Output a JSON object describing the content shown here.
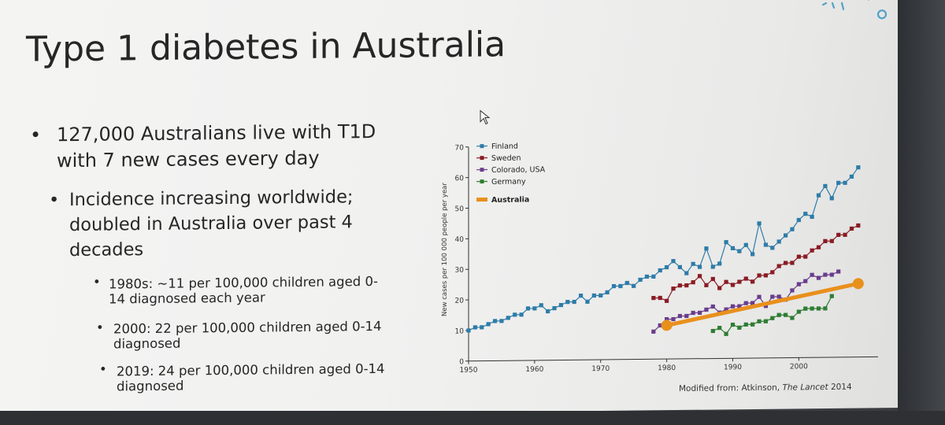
{
  "slide": {
    "title": "Type 1 diabetes in Australia",
    "bullets": {
      "b1_line1": "127,000 Australians live with T1D",
      "b1_line2": "with 7 new cases every day",
      "b2_line1": "Incidence increasing worldwide;",
      "b2_line2": "doubled in Australia over past 4",
      "b2_line3": "decades",
      "s1_line1": "1980s: ~11 per 100,000 children aged 0-",
      "s1_line2": "14 diagnosed each year",
      "s2_line1": "2000: 22 per 100,000 children aged 0-14",
      "s2_line2": "diagnosed",
      "s3_line1": "2019: 24 per 100,000 children aged 0-14",
      "s3_line2": "diagnosed"
    },
    "bullet_glyph": "•",
    "caption_prefix": "Modified from: Atkinson, ",
    "caption_journal": "The Lancet",
    "caption_suffix": " 2014"
  },
  "colors": {
    "finland": "#2e7ca8",
    "sweden": "#8a1c24",
    "colorado": "#6a3d8c",
    "germany": "#2e7d32",
    "australia": "#e8901c",
    "text": "#262626",
    "deco": "#4fa3c7"
  },
  "icons": {
    "cursor": "arrow-cursor-icon",
    "decoration": "sparkle-decoration-icon"
  },
  "chart_data": {
    "type": "line",
    "title": "",
    "xlabel": "",
    "ylabel": "New cases per 100 000 people per year",
    "xlim": [
      1950,
      2012
    ],
    "ylim": [
      0,
      70
    ],
    "xticks": [
      1950,
      1960,
      1970,
      1980,
      1990,
      2000
    ],
    "yticks": [
      0,
      10,
      20,
      30,
      40,
      50,
      60,
      70
    ],
    "grid": false,
    "legend_position": "top-left",
    "series": [
      {
        "name": "Finland",
        "color_key": "finland",
        "marker": "square",
        "x": [
          1950,
          1951,
          1952,
          1953,
          1954,
          1955,
          1956,
          1957,
          1958,
          1959,
          1960,
          1961,
          1962,
          1963,
          1964,
          1965,
          1966,
          1967,
          1968,
          1969,
          1970,
          1971,
          1972,
          1973,
          1974,
          1975,
          1976,
          1977,
          1978,
          1979,
          1980,
          1981,
          1982,
          1983,
          1984,
          1985,
          1986,
          1987,
          1988,
          1989,
          1990,
          1991,
          1992,
          1993,
          1994,
          1995,
          1996,
          1997,
          1998,
          1999,
          2000,
          2001,
          2002,
          2003,
          2004,
          2005,
          2006,
          2007,
          2008,
          2009
        ],
        "y": [
          10,
          11,
          11,
          12,
          13,
          13,
          14,
          15,
          15,
          17,
          17,
          18,
          16,
          17,
          18,
          19,
          19,
          21,
          19,
          21,
          21,
          22,
          24,
          24,
          25,
          24,
          26,
          27,
          27,
          29,
          30,
          32,
          30,
          28,
          31,
          30,
          36,
          30,
          31,
          38,
          36,
          35,
          37,
          34,
          44,
          37,
          36,
          38,
          40,
          42,
          45,
          47,
          46,
          53,
          56,
          52,
          57,
          57,
          59,
          62
        ]
      },
      {
        "name": "Sweden",
        "color_key": "sweden",
        "marker": "square",
        "x": [
          1978,
          1979,
          1980,
          1981,
          1982,
          1983,
          1984,
          1985,
          1986,
          1987,
          1988,
          1989,
          1990,
          1991,
          1992,
          1993,
          1994,
          1995,
          1996,
          1997,
          1998,
          1999,
          2000,
          2001,
          2002,
          2003,
          2004,
          2005,
          2006,
          2007,
          2008,
          2009
        ],
        "y": [
          20,
          20,
          19,
          23,
          24,
          24,
          25,
          27,
          24,
          26,
          23,
          25,
          24,
          25,
          26,
          25,
          27,
          27,
          28,
          30,
          31,
          31,
          33,
          33,
          35,
          36,
          38,
          38,
          40,
          40,
          42,
          43
        ]
      },
      {
        "name": "Colorado, USA",
        "color_key": "colorado",
        "marker": "square",
        "x": [
          1978,
          1979,
          1980,
          1981,
          1982,
          1983,
          1984,
          1985,
          1986,
          1987,
          1988,
          1989,
          1990,
          1991,
          1992,
          1993,
          1994,
          1995,
          1996,
          1997,
          1998,
          1999,
          2000,
          2001,
          2002,
          2003,
          2004,
          2005,
          2006
        ],
        "y": [
          9,
          11,
          13,
          13,
          14,
          14,
          15,
          15,
          16,
          17,
          15,
          16,
          17,
          17,
          18,
          18,
          20,
          17,
          20,
          20,
          19,
          22,
          24,
          25,
          27,
          26,
          27,
          27,
          28
        ]
      },
      {
        "name": "Germany",
        "color_key": "germany",
        "marker": "square",
        "x": [
          1987,
          1988,
          1989,
          1990,
          1991,
          1992,
          1993,
          1994,
          1995,
          1996,
          1997,
          1998,
          1999,
          2000,
          2001,
          2002,
          2003,
          2004,
          2005
        ],
        "y": [
          9,
          10,
          8,
          11,
          10,
          11,
          11,
          12,
          12,
          13,
          14,
          14,
          13,
          15,
          16,
          16,
          16,
          16,
          20
        ]
      },
      {
        "name": "Australia",
        "color_key": "australia",
        "marker": "circle-endpoints",
        "thick": true,
        "x": [
          1980,
          2009
        ],
        "y": [
          11,
          24
        ]
      }
    ],
    "annotation": "Modified from: Atkinson, The Lancet 2014"
  }
}
